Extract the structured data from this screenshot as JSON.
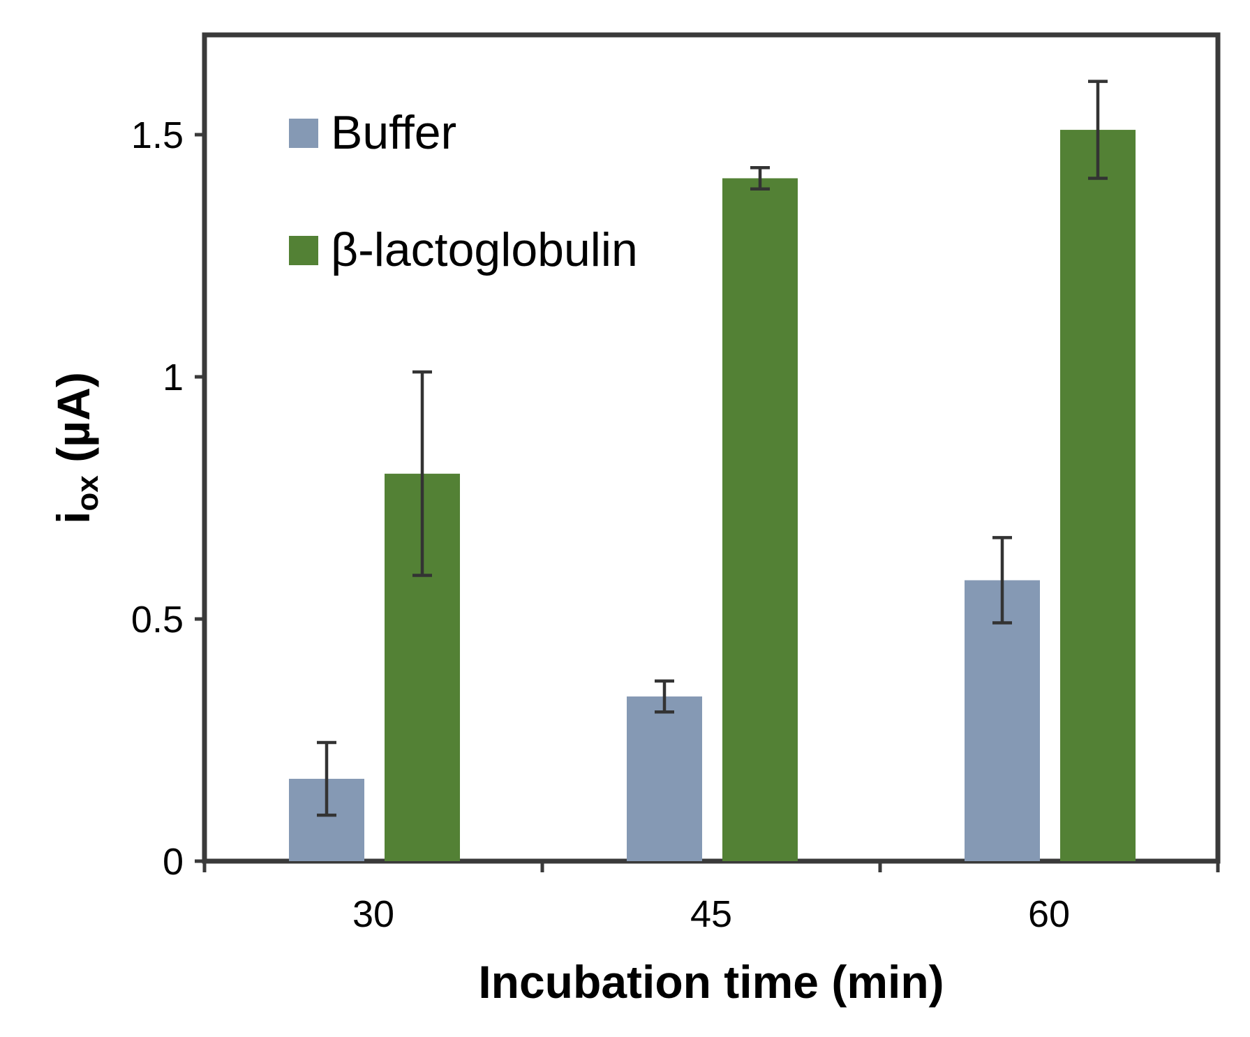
{
  "chart_data": {
    "type": "bar",
    "categories": [
      "30",
      "45",
      "60"
    ],
    "series": [
      {
        "name": "Buffer",
        "color": "#8599b4",
        "values": [
          0.17,
          0.34,
          0.58
        ],
        "error": [
          0.075,
          0.032,
          0.088
        ]
      },
      {
        "name": "β-lactoglobulin",
        "color": "#538135",
        "values": [
          0.8,
          1.41,
          1.51
        ],
        "error": [
          0.21,
          0.022,
          0.1
        ]
      }
    ],
    "ylabel_main": "i",
    "ylabel_sub": "ox",
    "ylabel_unit": " (µA)",
    "xlabel": "Incubation time  (min)",
    "ylim": [
      0,
      1.7
    ],
    "yticks": [
      0,
      0.5,
      1,
      1.5
    ],
    "ytick_labels": [
      "0",
      "0.5",
      "1",
      "1.5"
    ],
    "legend_position": "top-left",
    "grid": false
  }
}
